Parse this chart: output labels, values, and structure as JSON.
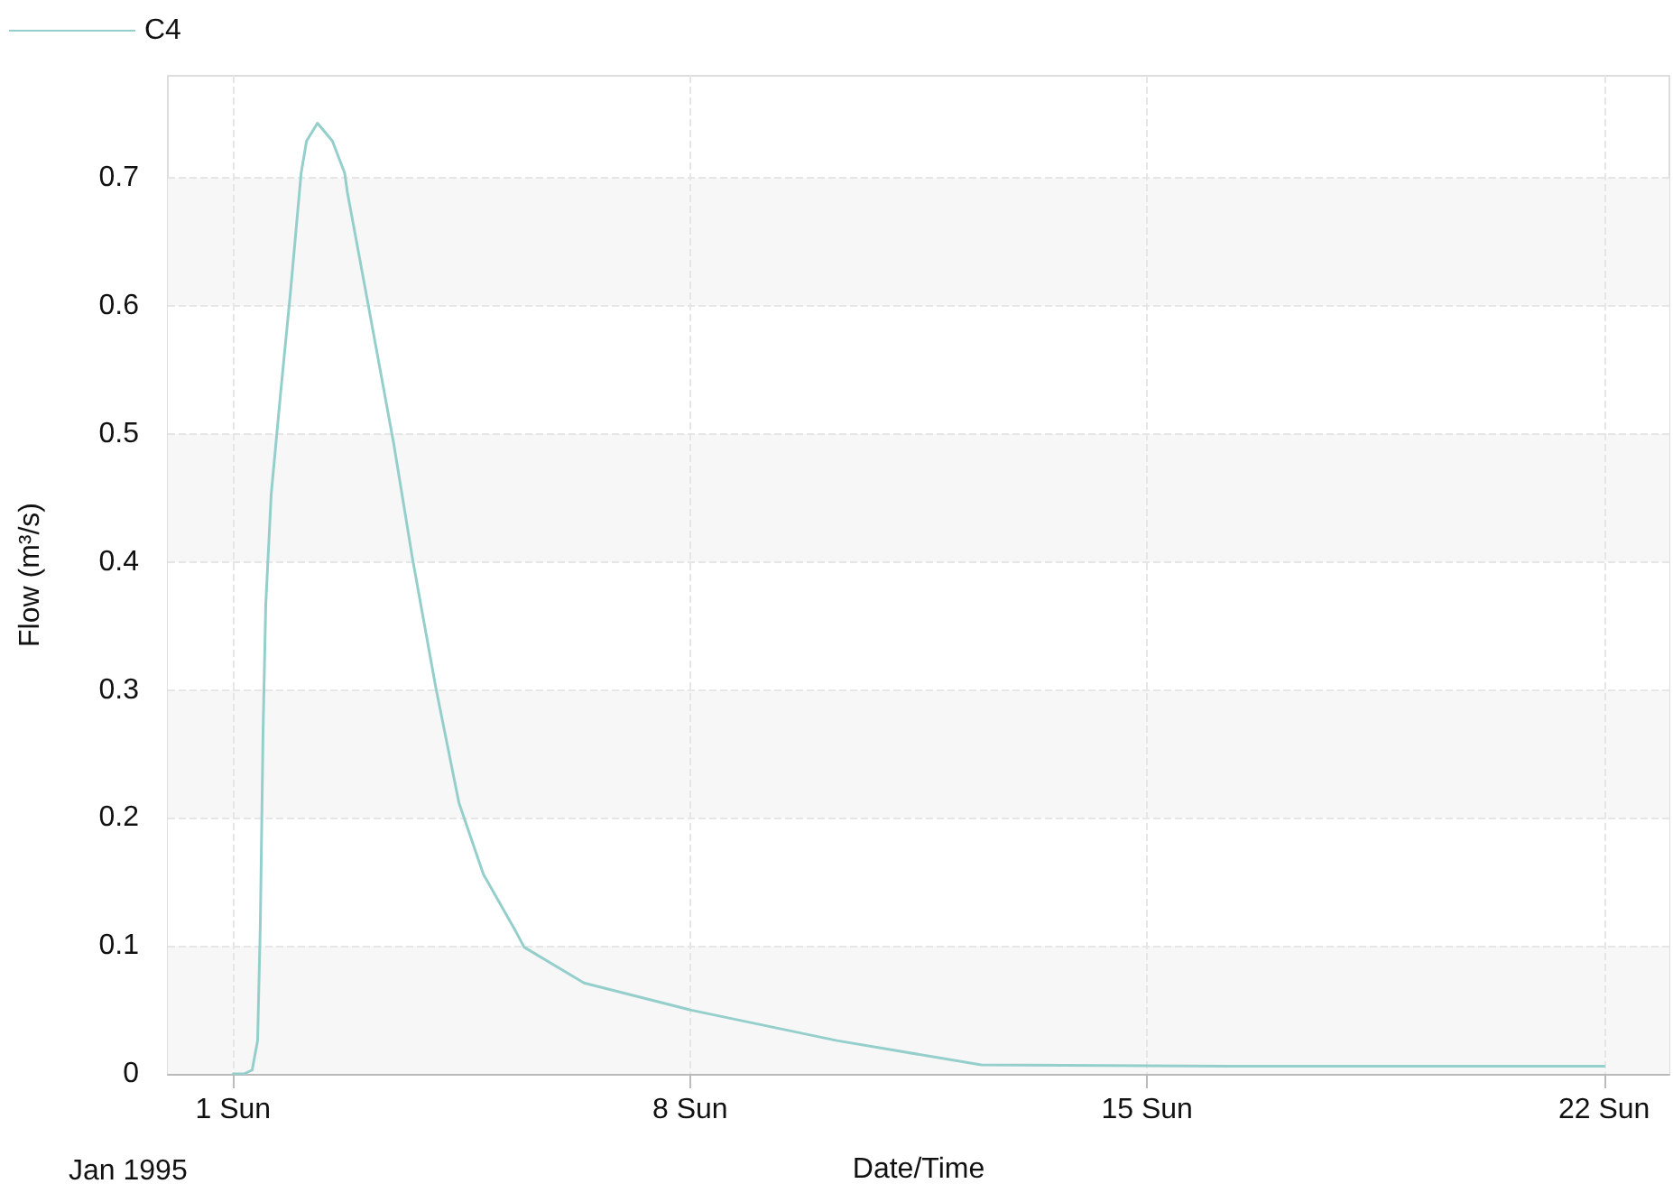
{
  "chart_data": {
    "type": "line",
    "xlabel": "Date/Time",
    "ylabel": "Flow (m³/s)",
    "annotations": [
      "Jan 1995"
    ],
    "xlim": [
      "1994-12-31",
      "1995-01-23"
    ],
    "xticks": [
      {
        "value": "1995-01-01",
        "label": "1 Sun"
      },
      {
        "value": "1995-01-08",
        "label": "8 Sun"
      },
      {
        "value": "1995-01-15",
        "label": "15 Sun"
      },
      {
        "value": "1995-01-22",
        "label": "22 Sun"
      }
    ],
    "ylim": [
      0,
      0.78
    ],
    "yticks": [
      0,
      0.1,
      0.2,
      0.3,
      0.4,
      0.5,
      0.6,
      0.7
    ],
    "grid": true,
    "legend": "top left",
    "marker": "none",
    "line_style": "solid",
    "series": [
      {
        "name": "C4",
        "color": "#95cfcc",
        "x": [
          "1995-01-01T00:00",
          "1995-01-01T04:00",
          "1995-01-01T07:00",
          "1995-01-01T09:00",
          "1995-01-01T10:00",
          "1995-01-01T11:00",
          "1995-01-01T12:00",
          "1995-01-01T14:00",
          "1995-01-01T17:30",
          "1995-01-01T21:00",
          "1995-01-02T01:00",
          "1995-01-02T03:00",
          "1995-01-02T07:00",
          "1995-01-02T12:30",
          "1995-01-02T17:00",
          "1995-01-02T18:00",
          "1995-01-03T01:30",
          "1995-01-03T11:00",
          "1995-01-03T18:00",
          "1995-01-04T02:30",
          "1995-01-04T11:00",
          "1995-01-04T20:00",
          "1995-01-05T08:00",
          "1995-01-05T11:00",
          "1995-01-06T09:00",
          "1995-01-08T00:00",
          "1995-01-10T06:00",
          "1995-01-12T11:00",
          "1995-01-16T06:00",
          "1995-01-22T00:00"
        ],
        "values": [
          0,
          0,
          0.003,
          0.026,
          0.117,
          0.267,
          0.367,
          0.453,
          0.533,
          0.609,
          0.704,
          0.729,
          0.743,
          0.729,
          0.704,
          0.689,
          0.603,
          0.493,
          0.402,
          0.302,
          0.212,
          0.156,
          0.111,
          0.099,
          0.071,
          0.05,
          0.026,
          0.007,
          0.006,
          0.006
        ]
      }
    ]
  }
}
